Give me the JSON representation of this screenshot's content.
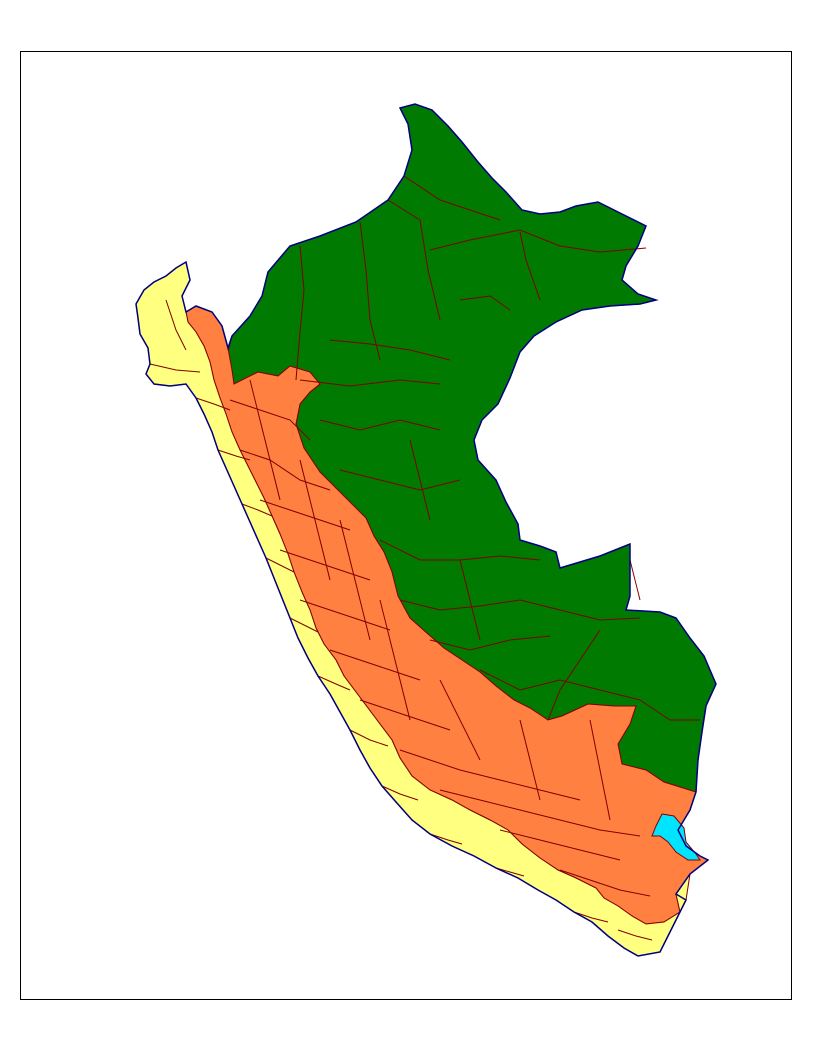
{
  "map": {
    "regions": [
      {
        "id": "costa",
        "color": "#FFFF80"
      },
      {
        "id": "sierra",
        "color": "#FF8040"
      },
      {
        "id": "selva",
        "color": "#007A00"
      },
      {
        "id": "lago",
        "color": "#00E5FF"
      }
    ],
    "colors": {
      "province_border": "#800000",
      "coast_outline": "#000080",
      "frame": "#000000"
    }
  }
}
